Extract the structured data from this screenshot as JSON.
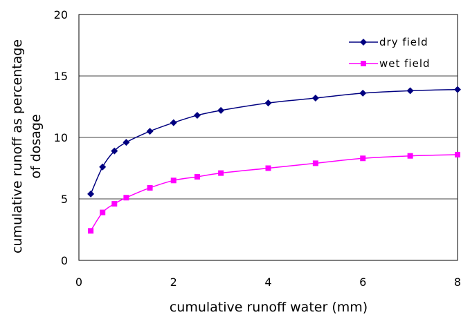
{
  "chart_data": {
    "type": "line",
    "xlabel": "cumulative runoff water (mm)",
    "ylabel": [
      "cumulative runoff as percentage",
      "of dosage"
    ],
    "xlim": [
      0,
      8
    ],
    "ylim": [
      0,
      20
    ],
    "xticks": [
      0,
      2,
      4,
      6,
      8
    ],
    "yticks": [
      0,
      5,
      10,
      15,
      20
    ],
    "xtick_labels": [
      "0",
      "2",
      "4",
      "6",
      "8"
    ],
    "ytick_labels": [
      "0",
      "5",
      "10",
      "15",
      "20"
    ],
    "grid": "horizontal",
    "legend_position": "top-right",
    "series": [
      {
        "name": "dry field",
        "color": "#000080",
        "marker": "diamond",
        "x": [
          0.25,
          0.5,
          0.75,
          1,
          1.5,
          2,
          2.5,
          3,
          4,
          5,
          6,
          7,
          8
        ],
        "y": [
          5.4,
          7.6,
          8.9,
          9.6,
          10.5,
          11.2,
          11.8,
          12.2,
          12.8,
          13.2,
          13.6,
          13.8,
          13.9
        ]
      },
      {
        "name": "wet field",
        "color": "#FF00FF",
        "marker": "square",
        "x": [
          0.25,
          0.5,
          0.75,
          1,
          1.5,
          2,
          2.5,
          3,
          4,
          5,
          6,
          7,
          8
        ],
        "y": [
          2.4,
          3.9,
          4.6,
          5.1,
          5.9,
          6.5,
          6.8,
          7.1,
          7.5,
          7.9,
          8.3,
          8.5,
          8.6
        ]
      }
    ]
  }
}
